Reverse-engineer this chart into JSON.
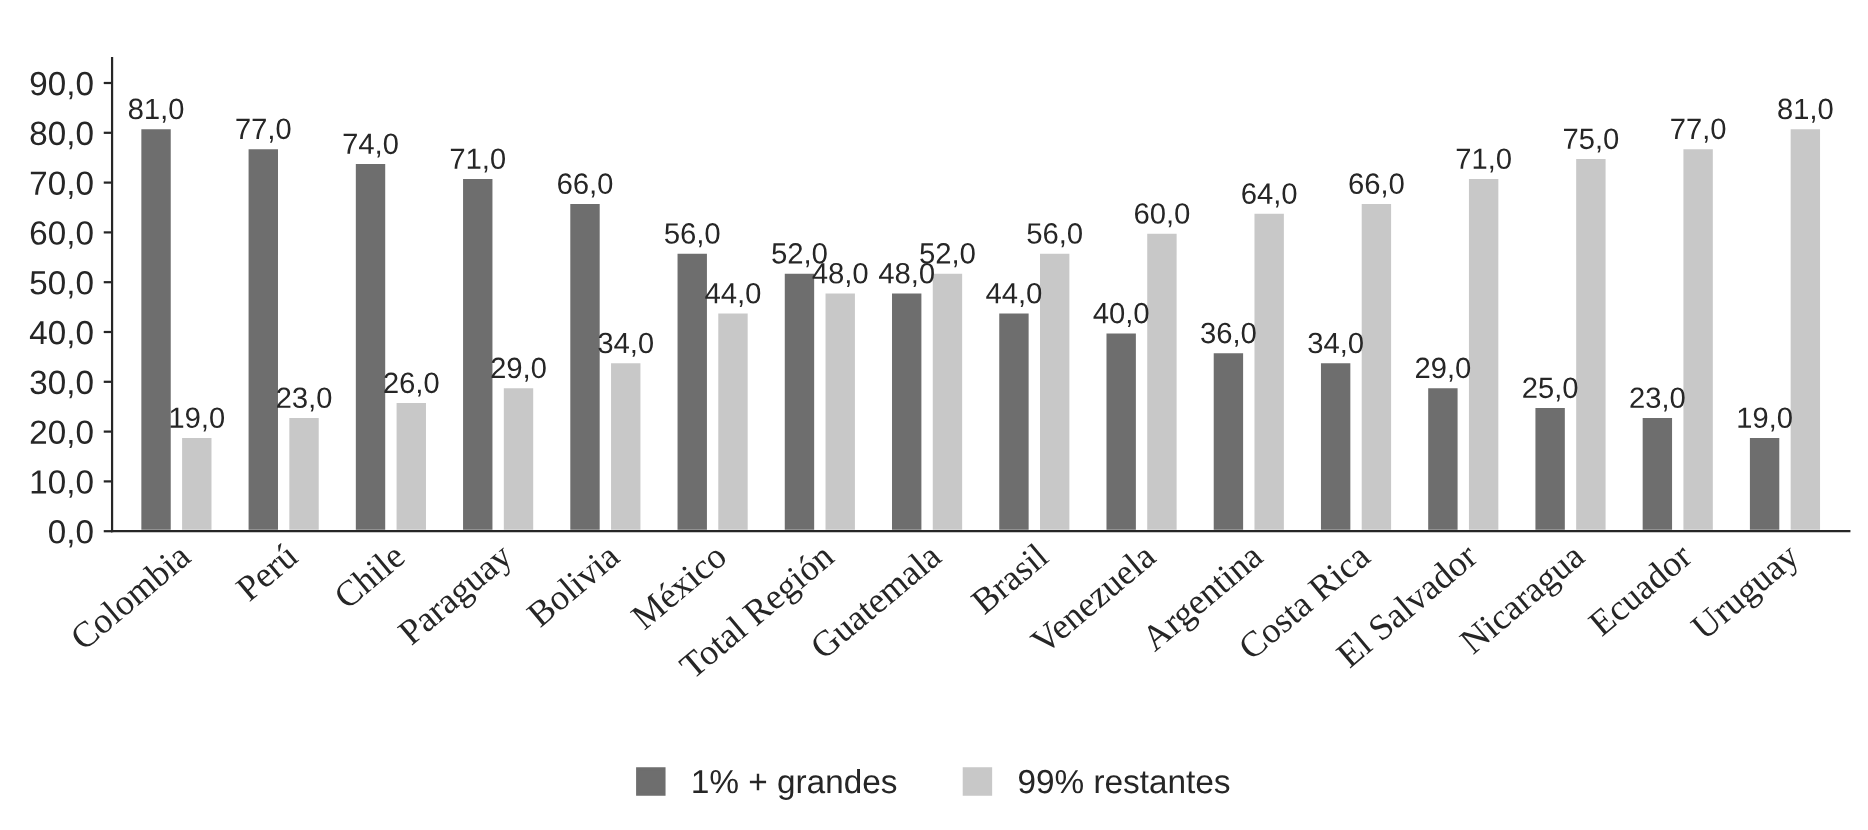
{
  "chart_data": {
    "type": "bar",
    "categories": [
      "Colombia",
      "Perú",
      "Chile",
      "Paraguay",
      "Bolivia",
      "México",
      "Total Región",
      "Guatemala",
      "Brasil",
      "Venezuela",
      "Argentina",
      "Costa Rica",
      "El Salvador",
      "Nicaragua",
      "Ecuador",
      "Uruguay"
    ],
    "series": [
      {
        "name": "1% + grandes",
        "color": "#6e6e6e",
        "values": [
          81,
          77,
          74,
          71,
          66,
          56,
          52,
          48,
          44,
          40,
          36,
          34,
          29,
          25,
          23,
          19
        ],
        "value_labels": [
          "81,0",
          "77,0",
          "74,0",
          "71,0",
          "66,0",
          "56,0",
          "52,0",
          "48,0",
          "44,0",
          "40,0",
          "36,0",
          "34,0",
          "29,0",
          "25,0",
          "23,0",
          "19,0"
        ]
      },
      {
        "name": "99% restantes",
        "color": "#c8c8c8",
        "values": [
          19,
          23,
          26,
          29,
          34,
          44,
          48,
          52,
          56,
          60,
          64,
          66,
          71,
          75,
          77,
          81
        ],
        "value_labels": [
          "19,0",
          "23,0",
          "26,0",
          "29,0",
          "34,0",
          "44,0",
          "48,0",
          "52,0",
          "56,0",
          "60,0",
          "64,0",
          "66,0",
          "71,0",
          "75,0",
          "77,0",
          "81,0"
        ]
      }
    ],
    "ylim": [
      0,
      95
    ],
    "yticks": [
      {
        "value": 0,
        "label": "0,0"
      },
      {
        "value": 10,
        "label": "10,0"
      },
      {
        "value": 20,
        "label": "20,0"
      },
      {
        "value": 30,
        "label": "30,0"
      },
      {
        "value": 40,
        "label": "40,0"
      },
      {
        "value": 50,
        "label": "50,0"
      },
      {
        "value": 60,
        "label": "60,0"
      },
      {
        "value": 70,
        "label": "70,0"
      },
      {
        "value": 80,
        "label": "80,0"
      },
      {
        "value": 90,
        "label": "90,0"
      }
    ],
    "grid": false,
    "legend": "bottom"
  }
}
